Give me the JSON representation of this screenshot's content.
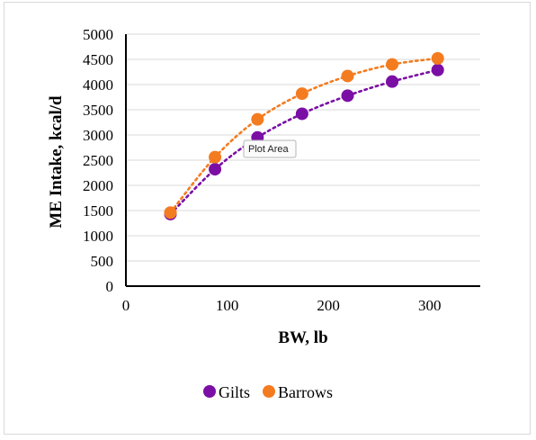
{
  "chart_data": {
    "type": "scatter",
    "title": "",
    "xlabel": "BW, lb",
    "ylabel": "ME Intake, kcal/d",
    "xlim": [
      0,
      350
    ],
    "ylim": [
      0,
      5000
    ],
    "x_ticks": [
      "0",
      "100",
      "200",
      "300"
    ],
    "y_ticks": [
      "0",
      "500",
      "1000",
      "1500",
      "2000",
      "2500",
      "3000",
      "3500",
      "4000",
      "4500",
      "5000"
    ],
    "grid": true,
    "legend_position": "bottom",
    "trendline": "dotted",
    "series": [
      {
        "name": "Gilts",
        "color": "#7b0fa5",
        "x": [
          44,
          88,
          130,
          174,
          219,
          263,
          308
        ],
        "y": [
          1430,
          2320,
          2950,
          3420,
          3780,
          4060,
          4290
        ]
      },
      {
        "name": "Barrows",
        "color": "#f47c20",
        "x": [
          44,
          88,
          130,
          174,
          219,
          263,
          308
        ],
        "y": [
          1460,
          2560,
          3310,
          3820,
          4170,
          4400,
          4520
        ]
      }
    ]
  },
  "tooltip": {
    "label": "Plot Area"
  }
}
